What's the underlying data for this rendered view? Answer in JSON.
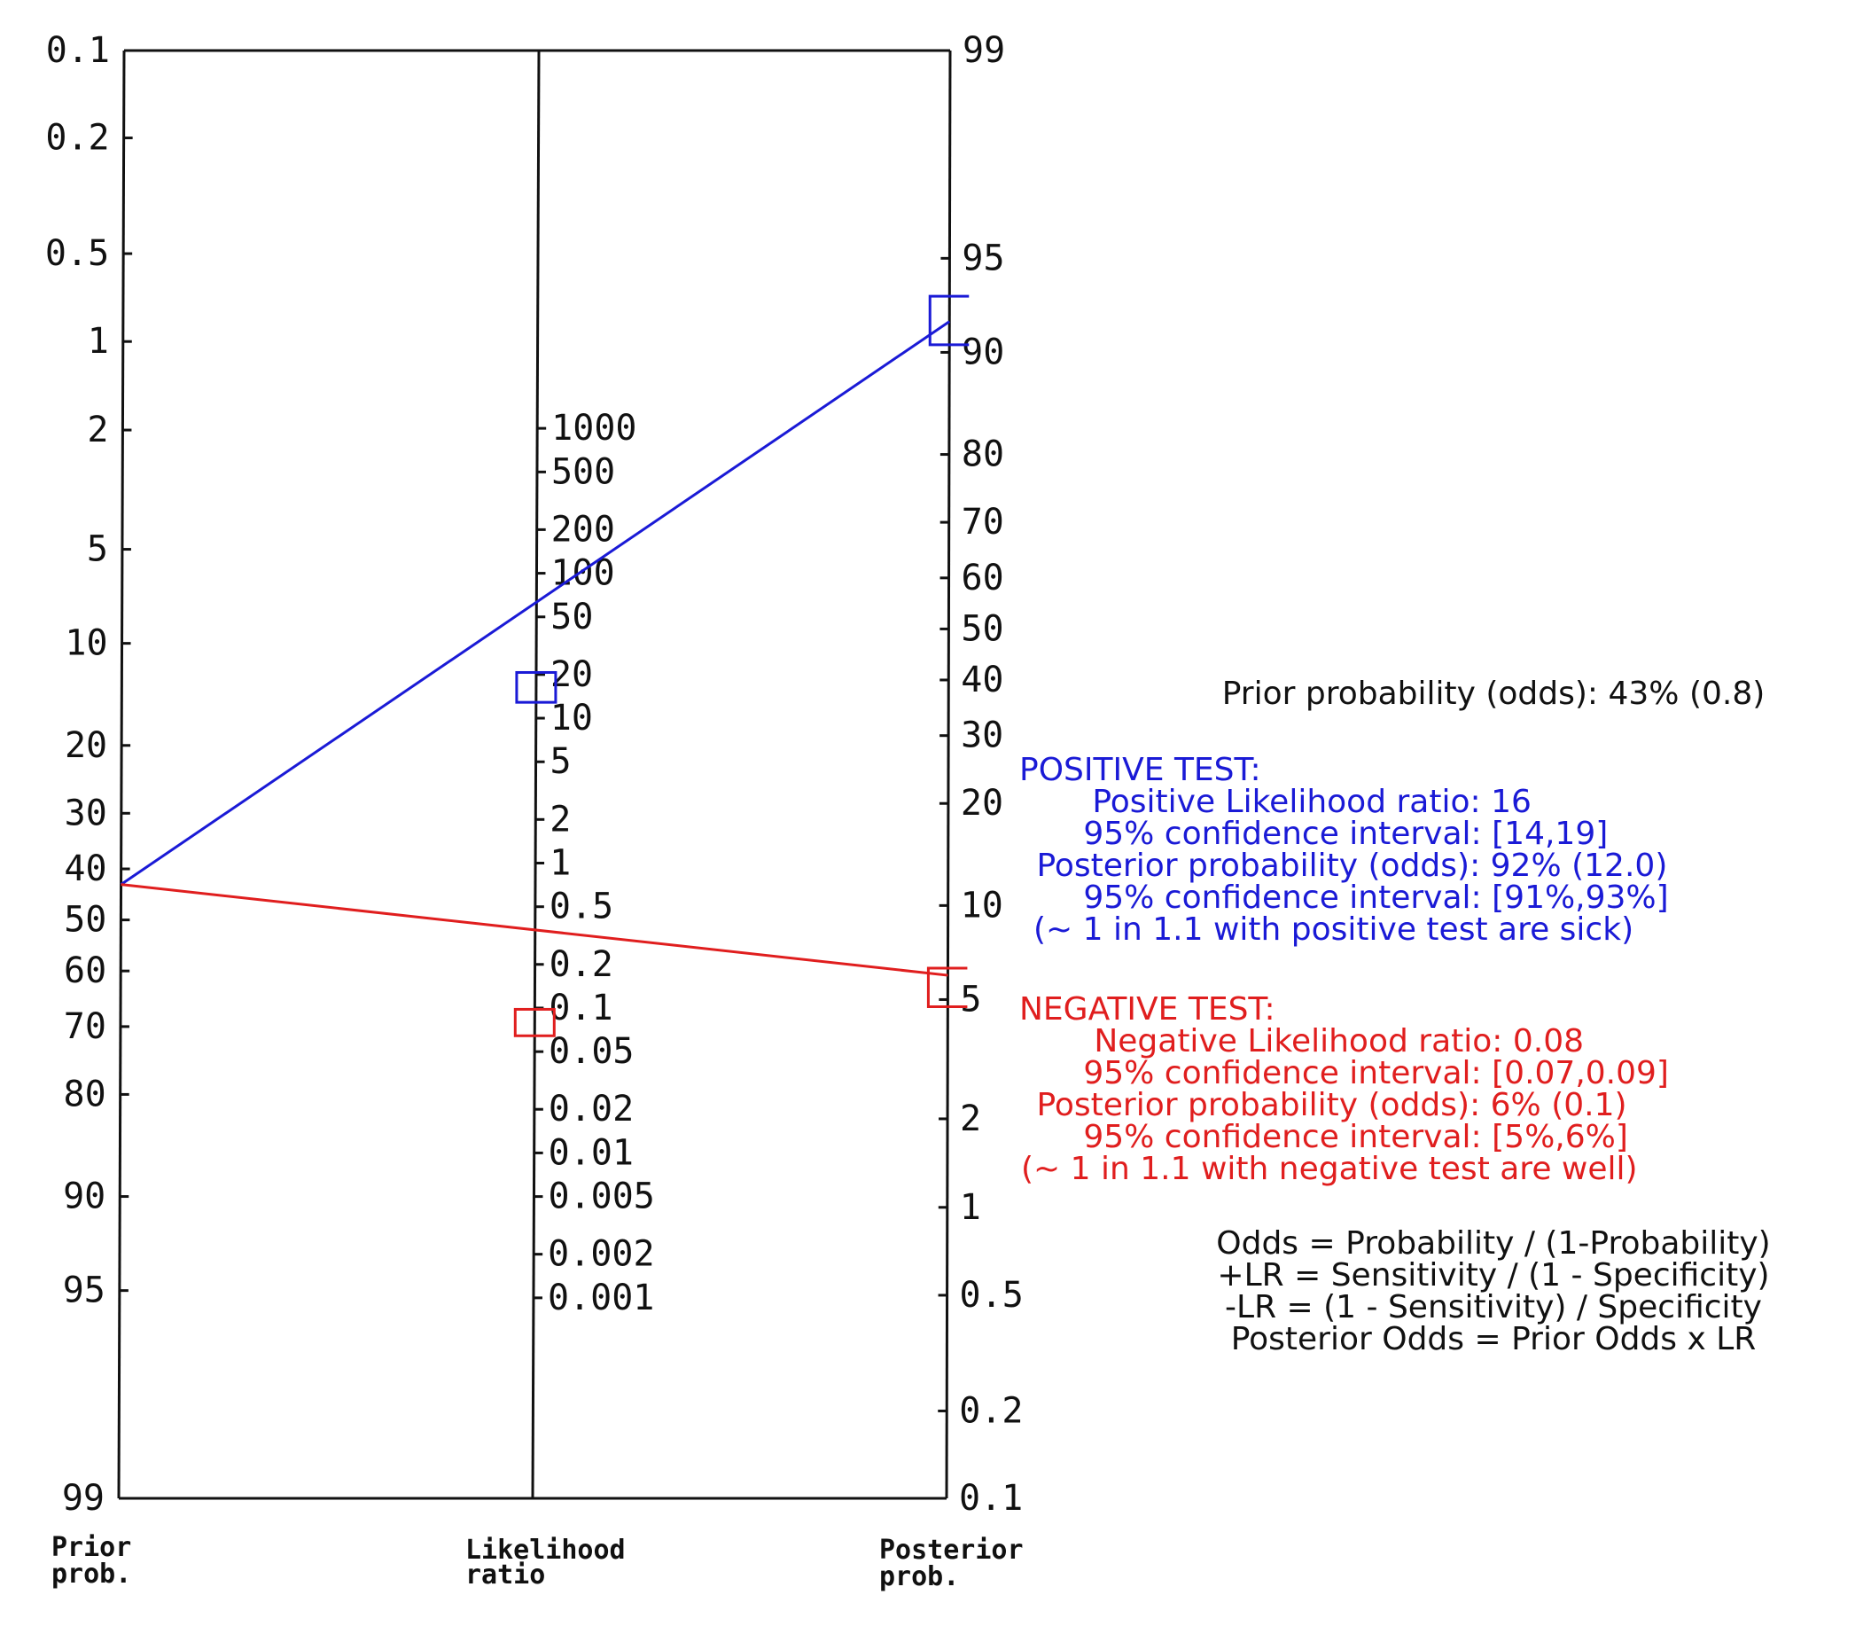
{
  "chart_data": {
    "type": "nomogram",
    "title": "",
    "axes": {
      "prior": {
        "label_line1": "Prior",
        "label_line2": "prob.",
        "ticks": [
          0.1,
          0.2,
          0.5,
          1,
          2,
          5,
          10,
          20,
          30,
          40,
          50,
          60,
          70,
          80,
          90,
          95,
          99
        ],
        "tick_labels": [
          "0.1",
          "0.2",
          "0.5",
          "1",
          "2",
          "5",
          "10",
          "20",
          "30",
          "40",
          "50",
          "60",
          "70",
          "80",
          "90",
          "95",
          "99"
        ],
        "direction": "increasing-downward"
      },
      "likelihood": {
        "label_line1": "Likelihood",
        "label_line2": "ratio",
        "ticks": [
          1000,
          500,
          200,
          100,
          50,
          20,
          10,
          5,
          2,
          1,
          0.5,
          0.2,
          0.1,
          0.05,
          0.02,
          0.01,
          0.005,
          0.002,
          0.001
        ],
        "tick_labels": [
          "1000",
          "500",
          "200",
          "100",
          "50",
          "20",
          "10",
          "5",
          "2",
          "1",
          "0.5",
          "0.2",
          "0.1",
          "0.05",
          "0.02",
          "0.01",
          "0.005",
          "0.002",
          "0.001"
        ]
      },
      "posterior": {
        "label_line1": "Posterior",
        "label_line2": "prob.",
        "ticks": [
          99,
          95,
          90,
          80,
          70,
          60,
          50,
          40,
          30,
          20,
          10,
          5,
          2,
          1,
          0.5,
          0.2,
          0.1
        ],
        "tick_labels": [
          "99",
          "95",
          "90",
          "80",
          "70",
          "60",
          "50",
          "40",
          "30",
          "20",
          "10",
          "5",
          "2",
          "1",
          "0.5",
          "0.2",
          "0.1"
        ],
        "direction": "increasing-upward"
      }
    },
    "series": [
      {
        "test": "positive",
        "color": "#1a1ad6",
        "prior": 43,
        "lr": 16,
        "lr_ci": [
          14,
          19
        ],
        "posterior": 92,
        "posterior_ci": [
          91,
          93
        ]
      },
      {
        "test": "negative",
        "color": "#e01e1e",
        "prior": 43,
        "lr": 0.08,
        "lr_ci": [
          0.07,
          0.09
        ],
        "posterior": 6,
        "posterior_ci": [
          5,
          6
        ]
      }
    ]
  },
  "panel": {
    "prior": "Prior probability (odds): 43% (0.8)",
    "positive": {
      "header": "POSITIVE TEST:",
      "lines": [
        "   Positive Likelihood ratio: 16",
        "   95% confidence interval: [14,19]",
        " Posterior probability (odds): 92% (12.0)",
        "   95% confidence interval: [91%,93%]",
        "(~ 1 in 1.1 with positive test are sick)"
      ]
    },
    "negative": {
      "header": "NEGATIVE TEST:",
      "lines": [
        "   Negative Likelihood ratio: 0.08",
        "   95% confidence interval: [0.07,0.09]",
        " Posterior probability (odds): 6% (0.1)",
        "   95% confidence interval: [5%,6%]",
        "(~ 1 in 1.1 with negative test are well)"
      ]
    },
    "formulas": [
      "Odds = Probability / (1-Probability)",
      "+LR = Sensitivity / (1 - Specificity)",
      "-LR = (1 - Sensitivity) / Specificity",
      "Posterior Odds = Prior Odds x LR"
    ]
  }
}
